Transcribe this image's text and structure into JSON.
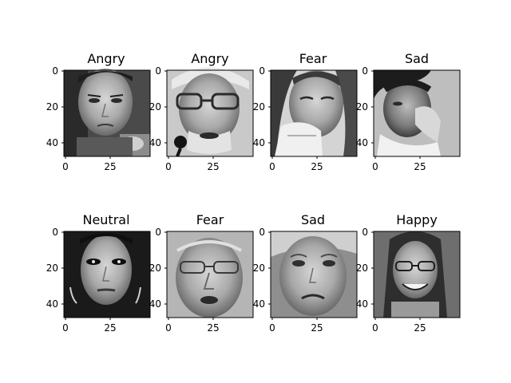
{
  "figure": {
    "panels": [
      {
        "title": "Angry",
        "image": "face-grayscale",
        "subject": "young man with short dark hair, startled frown",
        "x_ticks": [
          "0",
          "25"
        ],
        "y_ticks": [
          "0",
          "20",
          "40"
        ]
      },
      {
        "title": "Angry",
        "image": "face-grayscale",
        "subject": "elderly man with glasses and a light turban, speaking at a microphone",
        "x_ticks": [
          "0",
          "25"
        ],
        "y_ticks": [
          "0",
          "20",
          "40"
        ]
      },
      {
        "title": "Fear",
        "image": "face-grayscale",
        "subject": "woman with long hair, hand raised to her mouth, looking down",
        "x_ticks": [
          "0",
          "25"
        ],
        "y_ticks": [
          "0",
          "20",
          "40"
        ]
      },
      {
        "title": "Sad",
        "image": "face-grayscale",
        "subject": "child with hand pressed against face",
        "x_ticks": [
          "0",
          "25"
        ],
        "y_ticks": [
          "0",
          "20",
          "40"
        ]
      },
      {
        "title": "Neutral",
        "image": "face-grayscale",
        "subject": "woman with dark hair and heavy eye makeup",
        "x_ticks": [
          "0",
          "25"
        ],
        "y_ticks": [
          "0",
          "20",
          "40"
        ]
      },
      {
        "title": "Fear",
        "image": "face-grayscale",
        "subject": "older balding man with glasses, mouth slightly open",
        "x_ticks": [
          "0",
          "25"
        ],
        "y_ticks": [
          "0",
          "20",
          "40"
        ]
      },
      {
        "title": "Sad",
        "image": "face-grayscale",
        "subject": "girl with light hair, crying expression",
        "x_ticks": [
          "0",
          "25"
        ],
        "y_ticks": [
          "0",
          "20",
          "40"
        ]
      },
      {
        "title": "Happy",
        "image": "face-grayscale",
        "subject": "smiling woman with glasses and long hair",
        "x_ticks": [
          "0",
          "25"
        ],
        "y_ticks": [
          "0",
          "20",
          "40"
        ]
      }
    ]
  }
}
